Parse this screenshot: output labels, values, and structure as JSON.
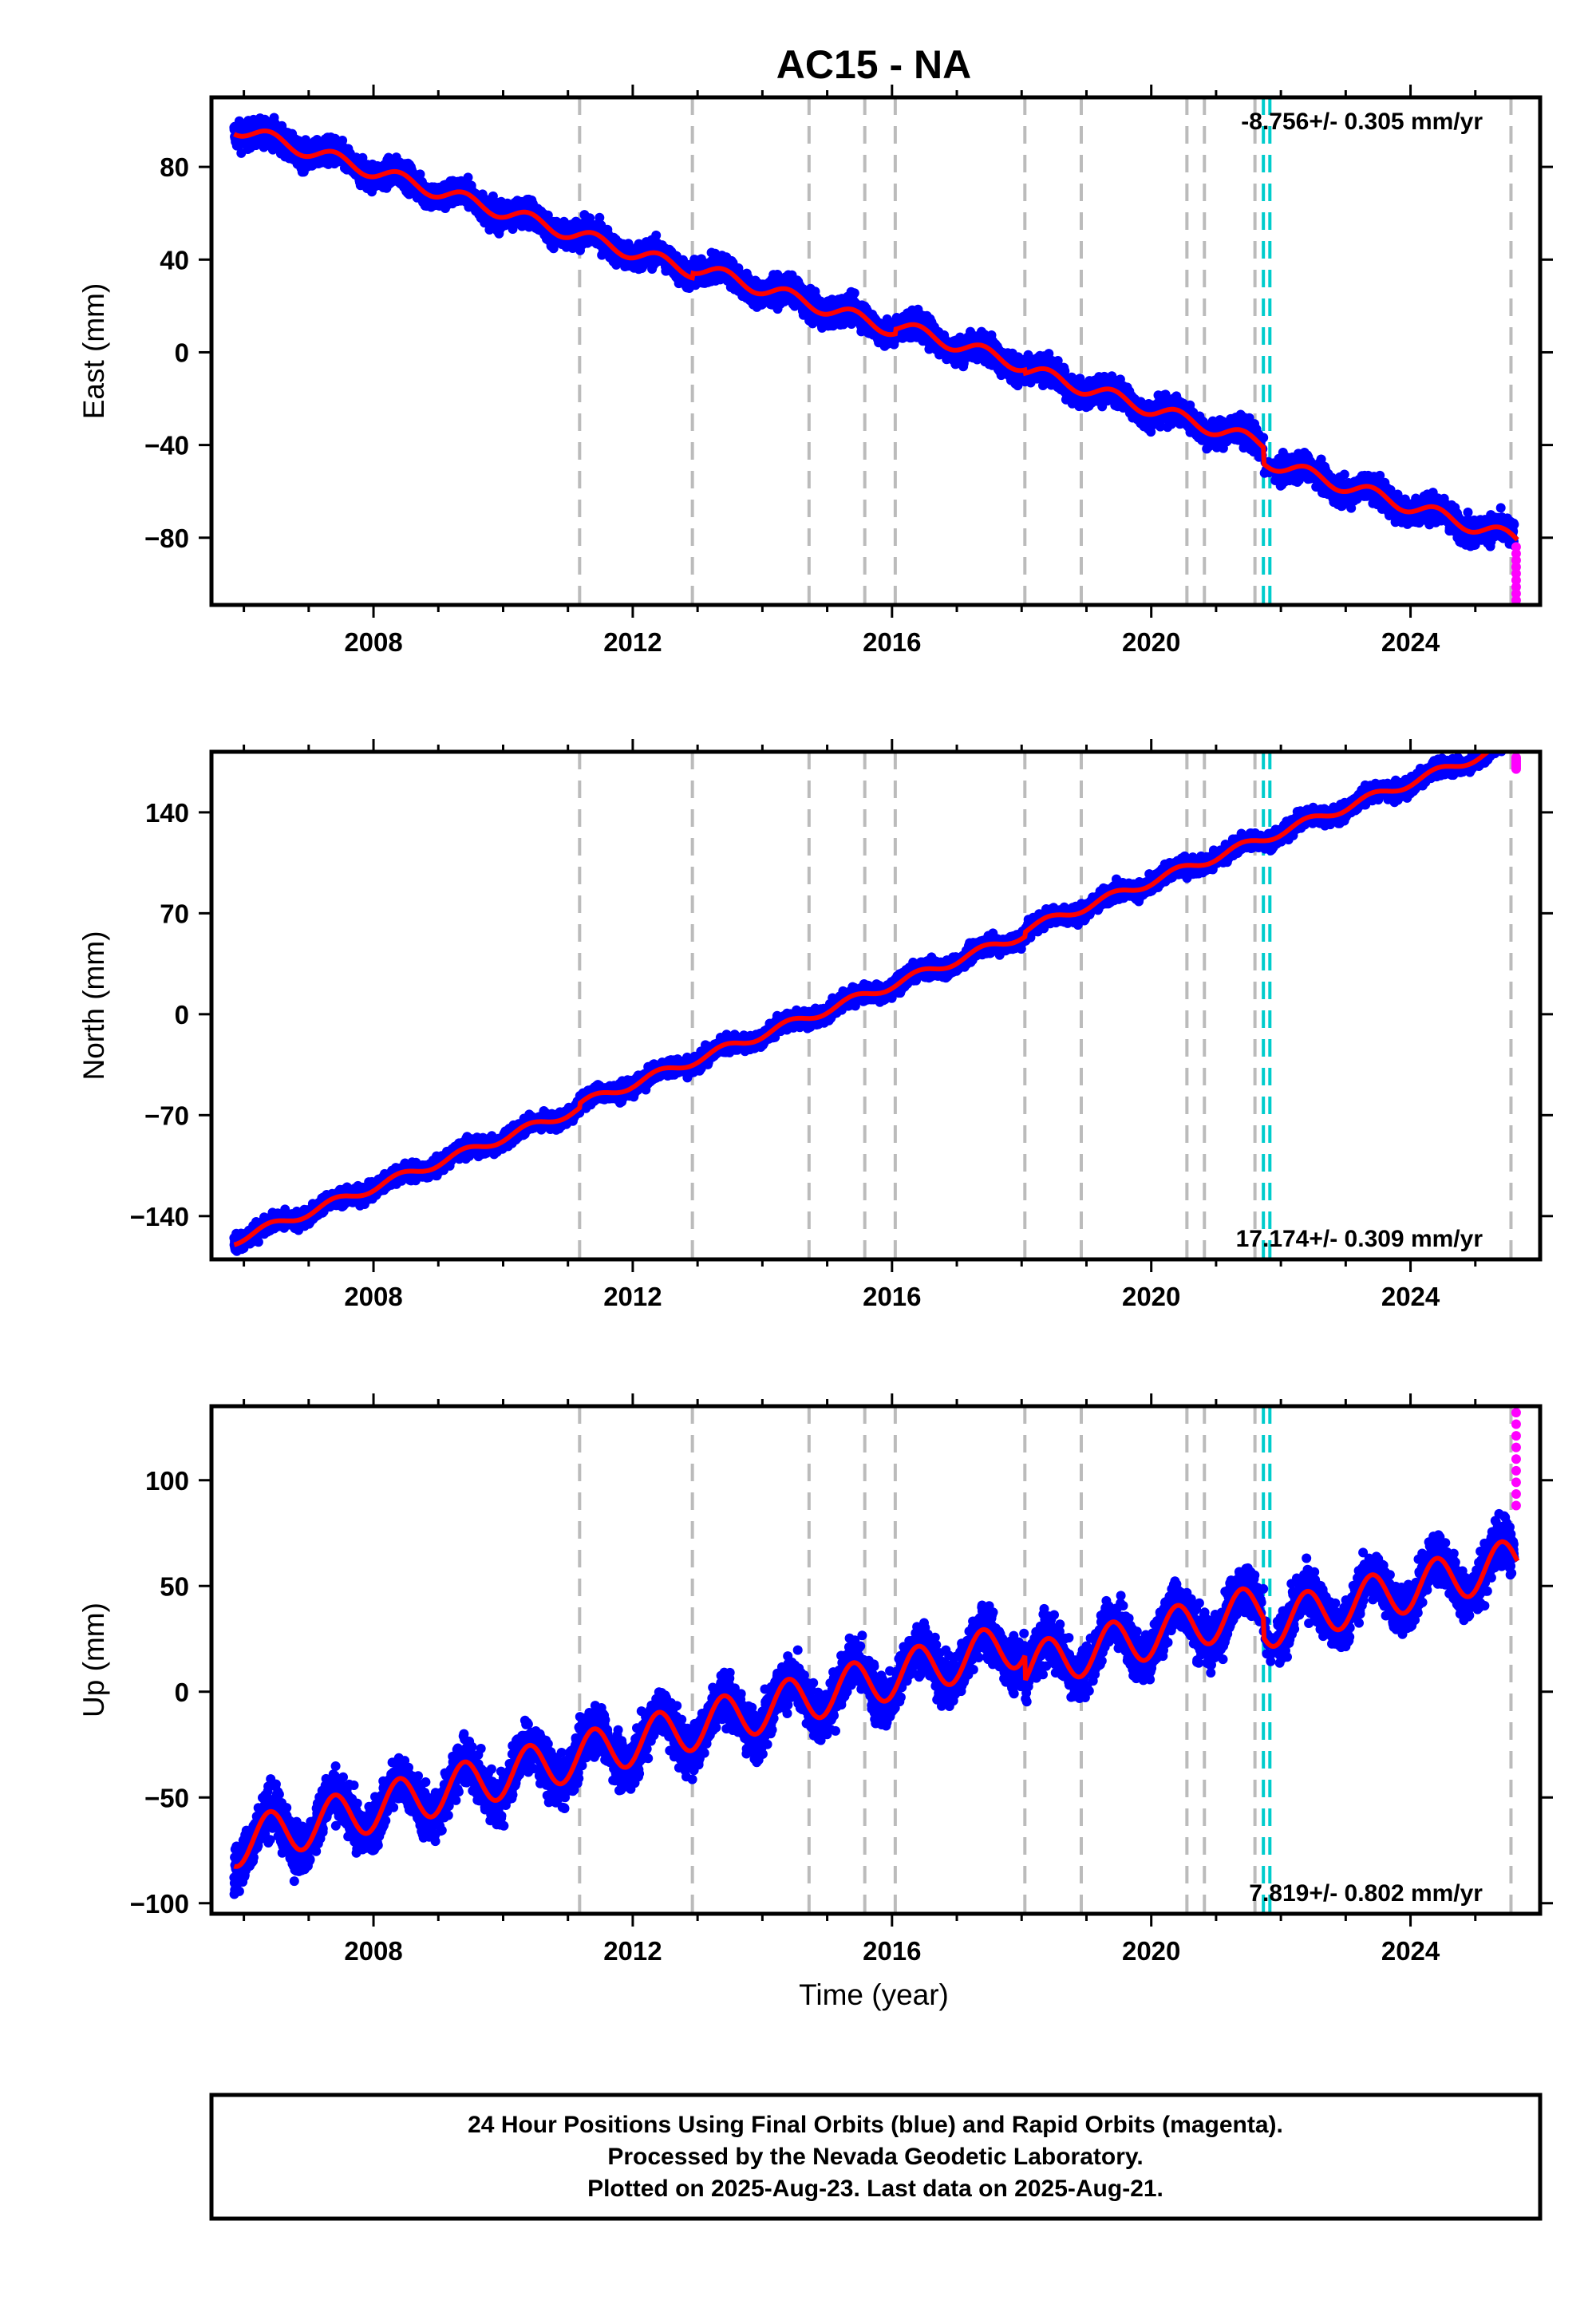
{
  "chart_data": {
    "title": "AC15 - NA",
    "xlabel": "Time (year)",
    "xlim": [
      2005.5,
      2026.0
    ],
    "x_ticks": [
      2008,
      2012,
      2016,
      2020,
      2024
    ],
    "event_lines": {
      "gray_dashed": [
        2011.18,
        2012.92,
        2014.72,
        2015.58,
        2016.05,
        2018.05,
        2018.92,
        2020.55,
        2020.82,
        2021.6,
        2025.55
      ],
      "cyan_dashed": [
        2021.73,
        2021.83
      ]
    },
    "colors": {
      "final": "#0000ff",
      "rapid": "#ff00ff",
      "model": "#ff0000",
      "gray_line": "#bbbbbb",
      "cyan_line": "#00cccc"
    },
    "panels": [
      {
        "name": "east",
        "type": "scatter",
        "ylabel": "East (mm)",
        "ylim": [
          -109,
          110
        ],
        "y_ticks": [
          80,
          40,
          0,
          -40,
          -80
        ],
        "y_tick_labels": [
          "80",
          "40",
          "0",
          "−40",
          "−80"
        ],
        "rate": "-8.756+/- 0.305 mm/yr",
        "rate_position": "top-right",
        "start_value": 97,
        "slope": -8.756,
        "seasonal_amplitude": 3,
        "offsets": [
          {
            "x": 2012.92,
            "dy": 2
          },
          {
            "x": 2016.05,
            "dy": 2
          },
          {
            "x": 2018.05,
            "dy": -1.5
          },
          {
            "x": 2021.73,
            "dy": -7
          }
        ],
        "scatter": 4,
        "rapid_range": [
          -107,
          -84
        ]
      },
      {
        "name": "north",
        "type": "scatter",
        "ylabel": "North (mm)",
        "ylim": [
          -170,
          182
        ],
        "y_ticks": [
          140,
          70,
          0,
          -70,
          -140
        ],
        "y_tick_labels": [
          "140",
          "70",
          "0",
          "−70",
          "−140"
        ],
        "rate": "17.174+/- 0.309 mm/yr",
        "rate_position": "bottom-right",
        "start_value": -157,
        "slope": 17.174,
        "seasonal_amplitude": 3,
        "offsets": [
          {
            "x": 2011.18,
            "dy": 3
          },
          {
            "x": 2018.05,
            "dy": 3
          }
        ],
        "scatter": 4,
        "rapid_range": [
          170,
          178
        ]
      },
      {
        "name": "up",
        "type": "scatter",
        "ylabel": "Up (mm)",
        "ylim": [
          -105,
          135
        ],
        "y_ticks": [
          100,
          50,
          0,
          -50,
          -100
        ],
        "y_tick_labels": [
          "100",
          "50",
          "0",
          "−50",
          "−100"
        ],
        "rate": "7.819+/- 0.802 mm/yr",
        "rate_position": "bottom-right",
        "start_value": -72,
        "slope": 7.819,
        "seasonal_amplitude": 11,
        "offsets": [
          {
            "x": 2018.05,
            "dy": -12
          },
          {
            "x": 2021.73,
            "dy": -9
          }
        ],
        "scatter": 8,
        "rapid_range": [
          88,
          132
        ]
      }
    ]
  },
  "footer": {
    "line1": "24 Hour Positions Using Final Orbits (blue) and Rapid Orbits (magenta).",
    "line2": "Processed by the Nevada Geodetic Laboratory.",
    "line3": "Plotted on 2025-Aug-23. Last data on 2025-Aug-21."
  }
}
